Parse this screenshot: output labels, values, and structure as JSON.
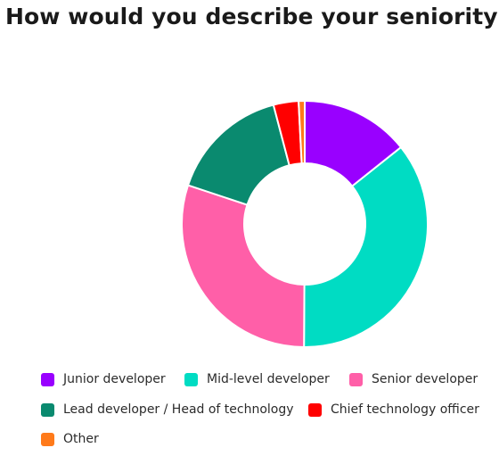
{
  "title": "How would you describe your seniority?",
  "chart_data": {
    "type": "pie",
    "variant": "donut",
    "title": "How would you describe your seniority?",
    "categories": [
      "Junior developer",
      "Mid-level developer",
      "Senior developer",
      "Lead developer / Head of technology",
      "Chief technology officer",
      "Other"
    ],
    "values": [
      14.3,
      35.8,
      30.0,
      15.8,
      3.3,
      0.8
    ],
    "colors": [
      "#9900ff",
      "#00dcc3",
      "#ff5fa8",
      "#0a8a6f",
      "#ff0000",
      "#ff7a1a"
    ],
    "legend_position": "bottom"
  }
}
